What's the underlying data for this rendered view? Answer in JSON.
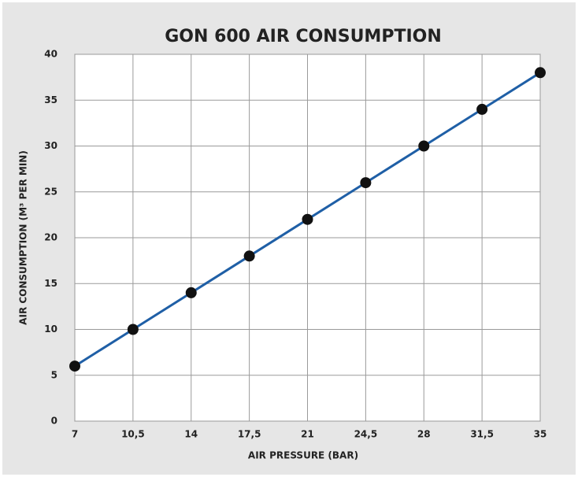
{
  "chart_data": {
    "type": "line",
    "title": "GON 600 AIR CONSUMPTION",
    "x_label": "AIR PRESSURE (BAR)",
    "y_label": "AIR CONSUMPTION (M³ PER MIN)",
    "x": [
      7,
      10.5,
      14,
      17.5,
      21,
      24.5,
      28,
      31.5,
      35
    ],
    "series": [
      {
        "name": "GON 600",
        "color": "#1f5fa6",
        "marker_color": "#111111",
        "values": [
          6,
          10,
          14,
          18,
          22,
          26,
          30,
          34,
          38
        ]
      }
    ],
    "xlim": [
      7,
      35
    ],
    "xticks": [
      7,
      {
        "value": 10.5,
        "label": "10,5"
      },
      14,
      {
        "value": 17.5,
        "label": "17,5"
      },
      21,
      {
        "value": 24.5,
        "label": "24,5"
      },
      28,
      {
        "value": 31.5,
        "label": "31,5"
      },
      35
    ],
    "ylim": [
      0,
      40
    ],
    "yticks": [
      0,
      5,
      10,
      15,
      20,
      25,
      30,
      35,
      40
    ],
    "grid": true
  }
}
